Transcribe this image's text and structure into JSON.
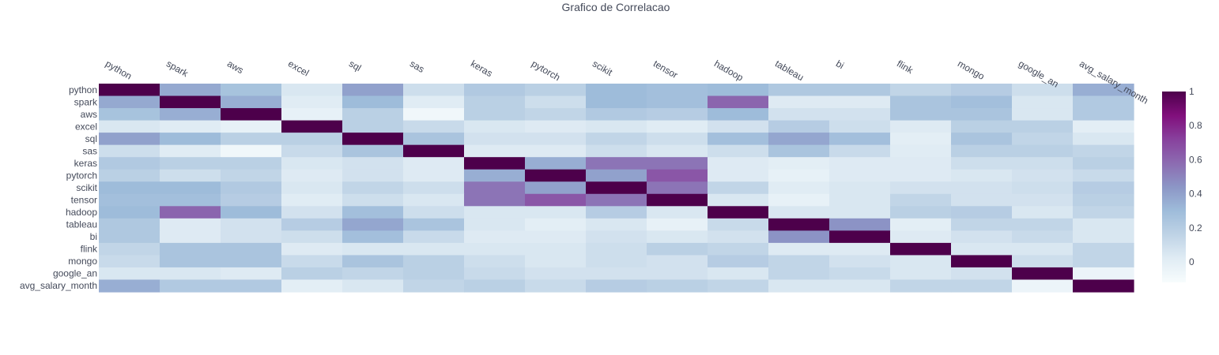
{
  "chart_data": {
    "type": "heatmap",
    "title": "Grafico de Correlacao",
    "labels": [
      "python",
      "spark",
      "aws",
      "excel",
      "sql",
      "sas",
      "keras",
      "pytorch",
      "scikit",
      "tensor",
      "hadoop",
      "tableau",
      "bi",
      "flink",
      "mongo",
      "google_an",
      "avg_salary_month"
    ],
    "values": [
      [
        1.0,
        0.37,
        0.26,
        0.05,
        0.4,
        0.1,
        0.22,
        0.18,
        0.3,
        0.28,
        0.3,
        0.23,
        0.23,
        0.15,
        0.2,
        0.1,
        0.35
      ],
      [
        0.37,
        1.0,
        0.35,
        0.02,
        0.3,
        0.02,
        0.18,
        0.1,
        0.3,
        0.28,
        0.6,
        0.03,
        0.03,
        0.25,
        0.28,
        0.05,
        0.22
      ],
      [
        0.26,
        0.35,
        1.0,
        -0.02,
        0.18,
        -0.08,
        0.18,
        0.15,
        0.22,
        0.2,
        0.3,
        0.08,
        0.08,
        0.25,
        0.25,
        0.05,
        0.22
      ],
      [
        0.05,
        0.02,
        -0.02,
        1.0,
        0.18,
        0.12,
        0.05,
        0.03,
        0.05,
        0.02,
        0.08,
        0.2,
        0.1,
        0.03,
        0.18,
        0.18,
        0.0
      ],
      [
        0.4,
        0.3,
        0.18,
        0.18,
        1.0,
        0.25,
        0.08,
        0.08,
        0.15,
        0.1,
        0.28,
        0.38,
        0.28,
        0.0,
        0.25,
        0.15,
        0.05
      ],
      [
        0.1,
        0.02,
        -0.08,
        0.12,
        0.25,
        1.0,
        0.03,
        0.03,
        0.1,
        0.05,
        0.1,
        0.25,
        0.12,
        0.02,
        0.18,
        0.18,
        0.15
      ],
      [
        0.22,
        0.18,
        0.18,
        0.05,
        0.08,
        0.03,
        1.0,
        0.35,
        0.55,
        0.55,
        0.03,
        0.0,
        0.03,
        0.03,
        0.1,
        0.1,
        0.18
      ],
      [
        0.18,
        0.1,
        0.15,
        0.03,
        0.08,
        0.03,
        0.35,
        1.0,
        0.4,
        0.65,
        0.03,
        -0.02,
        0.03,
        0.03,
        0.05,
        0.08,
        0.12
      ],
      [
        0.3,
        0.3,
        0.22,
        0.05,
        0.15,
        0.1,
        0.55,
        0.4,
        1.0,
        0.55,
        0.15,
        0.02,
        0.05,
        0.08,
        0.08,
        0.1,
        0.2
      ],
      [
        0.28,
        0.28,
        0.2,
        0.02,
        0.1,
        0.05,
        0.55,
        0.65,
        0.55,
        1.0,
        0.05,
        -0.02,
        0.05,
        0.15,
        0.08,
        0.08,
        0.18
      ],
      [
        0.3,
        0.6,
        0.3,
        0.08,
        0.28,
        0.1,
        0.05,
        0.05,
        0.2,
        0.05,
        1.0,
        0.05,
        0.05,
        0.18,
        0.2,
        0.05,
        0.15
      ],
      [
        0.23,
        0.03,
        0.08,
        0.2,
        0.38,
        0.25,
        0.05,
        0.0,
        0.05,
        -0.02,
        0.12,
        1.0,
        0.45,
        0.0,
        0.15,
        0.15,
        0.05
      ],
      [
        0.23,
        0.03,
        0.08,
        0.1,
        0.28,
        0.12,
        0.03,
        0.03,
        0.08,
        0.05,
        0.08,
        0.45,
        1.0,
        0.03,
        0.08,
        0.12,
        0.05
      ],
      [
        0.15,
        0.25,
        0.25,
        0.03,
        0.05,
        0.05,
        0.05,
        0.05,
        0.1,
        0.18,
        0.15,
        0.03,
        0.03,
        1.0,
        0.05,
        0.05,
        0.15
      ],
      [
        0.12,
        0.25,
        0.25,
        0.12,
        0.25,
        0.18,
        0.1,
        0.05,
        0.1,
        0.08,
        0.2,
        0.15,
        0.08,
        0.05,
        1.0,
        0.1,
        0.15
      ],
      [
        0.05,
        0.05,
        0.03,
        0.18,
        0.15,
        0.18,
        0.12,
        0.08,
        0.08,
        0.08,
        0.05,
        0.15,
        0.12,
        0.05,
        0.08,
        1.0,
        -0.05
      ],
      [
        0.35,
        0.22,
        0.22,
        0.0,
        0.05,
        0.15,
        0.18,
        0.12,
        0.2,
        0.18,
        0.15,
        0.05,
        0.05,
        0.15,
        0.15,
        -0.05,
        1.0
      ]
    ],
    "zmin": -0.12,
    "zmax": 1.0,
    "colorscale": [
      "#f7fcfd",
      "#e0ecf4",
      "#bfd3e6",
      "#9ebcda",
      "#8c96c6",
      "#8c6bb1",
      "#88419d",
      "#810f7c",
      "#4d004b"
    ],
    "colorbar_ticks": [
      "0",
      "0.2",
      "0.4",
      "0.6",
      "0.8",
      "1"
    ],
    "colorbar_tick_values": [
      0,
      0.2,
      0.4,
      0.6,
      0.8,
      1.0
    ],
    "x_axis_side": "top",
    "grid": false
  }
}
